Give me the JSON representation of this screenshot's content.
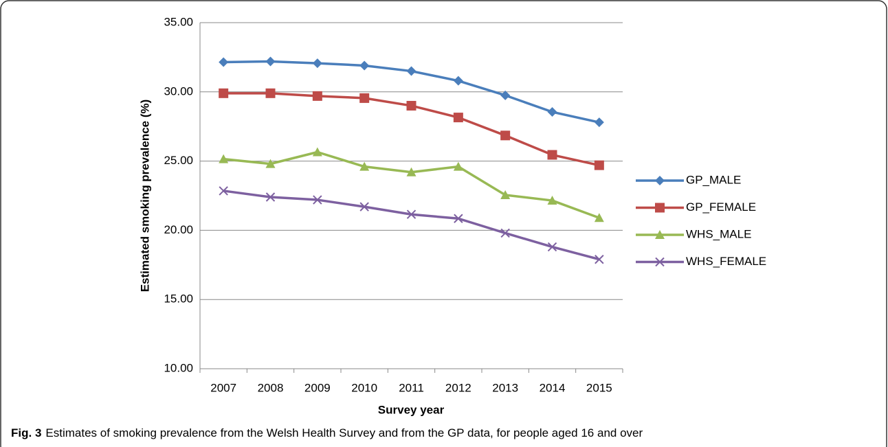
{
  "chart_data": {
    "type": "line",
    "y_label": "Estimated smoking prevalence (%)",
    "x_label": "Survey year",
    "caption_label": "Fig. 3",
    "caption": "Estimates of smoking prevalence from the Welsh Health Survey and from the GP data, for people aged 16 and over",
    "categories": [
      "2007",
      "2008",
      "2009",
      "2010",
      "2011",
      "2012",
      "2013",
      "2014",
      "2015"
    ],
    "series": [
      {
        "name": "GP_MALE",
        "color": "#4a7ebb",
        "marker": "diamond",
        "values": [
          32.15,
          32.2,
          32.07,
          31.9,
          31.5,
          30.8,
          29.75,
          28.55,
          27.8
        ]
      },
      {
        "name": "GP_FEMALE",
        "color": "#be4b48",
        "marker": "square",
        "values": [
          29.9,
          29.9,
          29.7,
          29.55,
          29.0,
          28.15,
          26.85,
          25.45,
          24.7
        ]
      },
      {
        "name": "WHS_MALE",
        "color": "#98b954",
        "marker": "triangle",
        "values": [
          25.15,
          24.8,
          25.65,
          24.6,
          24.2,
          24.6,
          22.55,
          22.15,
          20.9
        ]
      },
      {
        "name": "WHS_FEMALE",
        "color": "#7d60a0",
        "marker": "x",
        "values": [
          22.85,
          22.4,
          22.2,
          21.7,
          21.15,
          20.85,
          19.8,
          18.8,
          17.9
        ]
      }
    ],
    "ylim": [
      10,
      35
    ],
    "yticks": [
      {
        "value": 10,
        "label": "10.00"
      },
      {
        "value": 15,
        "label": "15.00"
      },
      {
        "value": 20,
        "label": "20.00"
      },
      {
        "value": 25,
        "label": "25.00"
      },
      {
        "value": 30,
        "label": "30.00"
      },
      {
        "value": 35,
        "label": "35.00"
      }
    ],
    "grid": true,
    "legend": "right"
  }
}
